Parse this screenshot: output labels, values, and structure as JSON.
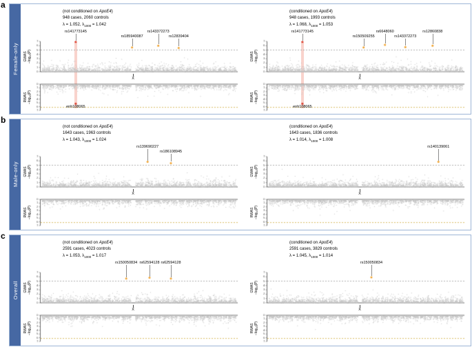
{
  "colors": {
    "sidebar": "#4668a3",
    "panel_border": "#9db5d6",
    "points": "#c4c4c4",
    "hit_orange": "#f0a22e",
    "hit_red": "#d93b2b",
    "band": "rgba(235,110,85,0.3)",
    "gwas_threshold_line": "#9a9a9a",
    "rwas_threshold_line": "#cfae3d",
    "axis": "#444444"
  },
  "chart_data": {
    "type": "manhattan",
    "y_range": [
      0,
      7
    ],
    "x_chrom_tick_fraction": 0.47,
    "gwas_threshold": 5,
    "rwas_threshold": 6.2,
    "labels": {
      "gwas": "GWAS",
      "rwas": "RWAS",
      "neglog": "−log",
      "log_sub": "10",
      "neglog_post": "(P)",
      "lambda_sub": "1000",
      "x_label": "X",
      "y_ticks": [
        0,
        1,
        2,
        3,
        4,
        5,
        6,
        7
      ]
    },
    "panels": [
      {
        "letter": "a",
        "sidebar_label": "Female-only",
        "subpanels": [
          {
            "condition_pre": "(not conditioned on ",
            "condition_gene": "ApoE4",
            "condition_post": ")",
            "cases_controls": "948 cases, 2060 controls",
            "lambda_pre": "λ = 1.052, λ",
            "lambda_post": " = 1.042",
            "gwas_hits": [
              {
                "label": "rs141773145",
                "x": 0.175,
                "value": 6.9,
                "color": "red",
                "row": 0,
                "band": true
              },
              {
                "label": "rs185940087",
                "x": 0.465,
                "value": 5.6,
                "color": "orange",
                "row": 1
              },
              {
                "label": "rs143372273",
                "x": 0.6,
                "value": 6.0,
                "color": "orange",
                "row": 0
              },
              {
                "label": "rs12839404",
                "x": 0.705,
                "value": 5.5,
                "color": "orange",
                "row": 1
              }
            ],
            "rwas_hits": [
              {
                "label": "enh108065",
                "x": 0.175,
                "value": 5.2,
                "color": "red",
                "band": true
              }
            ]
          },
          {
            "condition_pre": "(conditioned on ",
            "condition_gene": "ApoE4",
            "condition_post": ")",
            "cases_controls": "948 cases, 1993 controls",
            "lambda_pre": "λ = 1.068, λ",
            "lambda_post": " = 1.053",
            "gwas_hits": [
              {
                "label": "rs141773145",
                "x": 0.175,
                "value": 6.9,
                "color": "red",
                "row": 0,
                "band": true
              },
              {
                "label": "rs150509255",
                "x": 0.49,
                "value": 5.6,
                "color": "orange",
                "row": 1
              },
              {
                "label": "rs6648060",
                "x": 0.6,
                "value": 6.2,
                "color": "orange",
                "row": 0
              },
              {
                "label": "rs143372273",
                "x": 0.705,
                "value": 5.7,
                "color": "orange",
                "row": 1
              },
              {
                "label": "rs12860838",
                "x": 0.845,
                "value": 6.0,
                "color": "orange",
                "row": 0
              }
            ],
            "rwas_hits": [
              {
                "label": "enh108065",
                "x": 0.175,
                "value": 5.2,
                "color": "red",
                "band": true
              }
            ]
          }
        ]
      },
      {
        "letter": "b",
        "sidebar_label": "Male-only",
        "subpanels": [
          {
            "condition_pre": "(not conditioned on ",
            "condition_gene": "ApoE4",
            "condition_post": ")",
            "cases_controls": "1643 cases, 1963 controls",
            "lambda_pre": "λ = 1.043, λ",
            "lambda_post": " = 1.024",
            "gwas_hits": [
              {
                "label": "rs139690227",
                "x": 0.545,
                "value": 5.8,
                "color": "orange",
                "row": 0
              },
              {
                "label": "rs186108945",
                "x": 0.665,
                "value": 5.5,
                "color": "orange",
                "row": 1
              }
            ],
            "rwas_hits": []
          },
          {
            "condition_pre": "(conditioned on ",
            "condition_gene": "ApoE4",
            "condition_post": ")",
            "cases_controls": "1643 cases, 1836 controls",
            "lambda_pre": "λ = 1.014, λ",
            "lambda_post": " = 1.008",
            "gwas_hits": [
              {
                "label": "rs140139061",
                "x": 0.875,
                "value": 5.8,
                "color": "orange",
                "row": 0
              }
            ],
            "rwas_hits": []
          }
        ]
      },
      {
        "letter": "c",
        "sidebar_label": "Overall",
        "subpanels": [
          {
            "condition_pre": "(not conditioned on ",
            "condition_gene": "ApoE4",
            "condition_post": ")",
            "cases_controls": "2591 cases, 4023 controls",
            "lambda_pre": "λ = 1.053, λ",
            "lambda_post": " = 1.017",
            "gwas_hits": [
              {
                "label": "rs150050834",
                "x": 0.435,
                "value": 5.6,
                "color": "orange",
                "row": 0
              },
              {
                "label": "rs62594128",
                "x": 0.555,
                "value": 5.8,
                "color": "orange",
                "row": 0
              },
              {
                "label": "rs62594128",
                "x": 0.665,
                "value": 5.6,
                "color": "orange",
                "row": 0
              }
            ],
            "rwas_hits": []
          },
          {
            "condition_pre": "(conditioned on ",
            "condition_gene": "ApoE4",
            "condition_post": ")",
            "cases_controls": "2591 cases, 3829 controls",
            "lambda_pre": "λ = 1.045, λ",
            "lambda_post": " = 1.014",
            "gwas_hits": [
              {
                "label": "rs150050834",
                "x": 0.53,
                "value": 5.9,
                "color": "orange",
                "row": 0
              }
            ],
            "rwas_hits": []
          }
        ]
      }
    ]
  }
}
